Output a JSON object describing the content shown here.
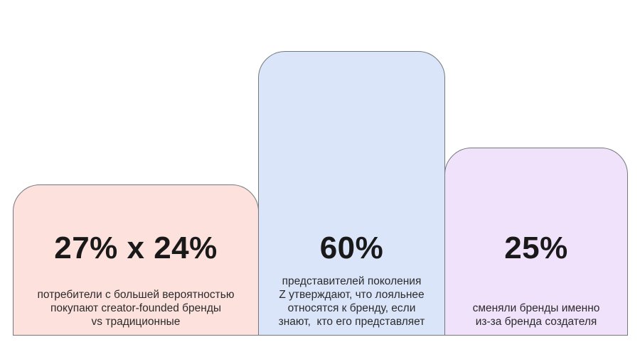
{
  "page": {
    "background": "#ffffff",
    "card_border_color": "#75797f",
    "value_text_color": "#191919",
    "body_text_color": "#2b2b2b"
  },
  "chart_data": {
    "type": "bar",
    "title": "",
    "orientation": "vertical",
    "grid": false,
    "legend": false,
    "bars": [
      {
        "value_label": "27% x 24%",
        "values": [
          27,
          24
        ],
        "description": "потребители с большей вероятностью покупают creator-founded бренды vs традиционные",
        "fill": "#fde1dc",
        "relative_height": 0.53
      },
      {
        "value_label": "60%",
        "values": [
          60
        ],
        "description": "представителей поколения Z утверждают, что лояльнее относятся к бренду, если знают,  кто его представляет",
        "fill": "#dbe5fa",
        "relative_height": 1.0
      },
      {
        "value_label": "25%",
        "values": [
          25
        ],
        "description": "сменяли бренды именно из-за бренда создателя",
        "fill": "#f0e2fb",
        "relative_height": 0.66
      }
    ]
  },
  "cards": [
    {
      "value": "27% x 24%",
      "lines": [
        "потребители с большей вероятностью",
        "покупают creator-founded бренды",
        "vs традиционные"
      ]
    },
    {
      "value": "60%",
      "lines": [
        "представителей поколения",
        "Z утверждают, что лояльнее",
        "относятся к бренду, если",
        "знают,  кто его представляет"
      ]
    },
    {
      "value": "25%",
      "lines": [
        "сменяли бренды именно",
        "из-за бренда создателя"
      ]
    }
  ]
}
